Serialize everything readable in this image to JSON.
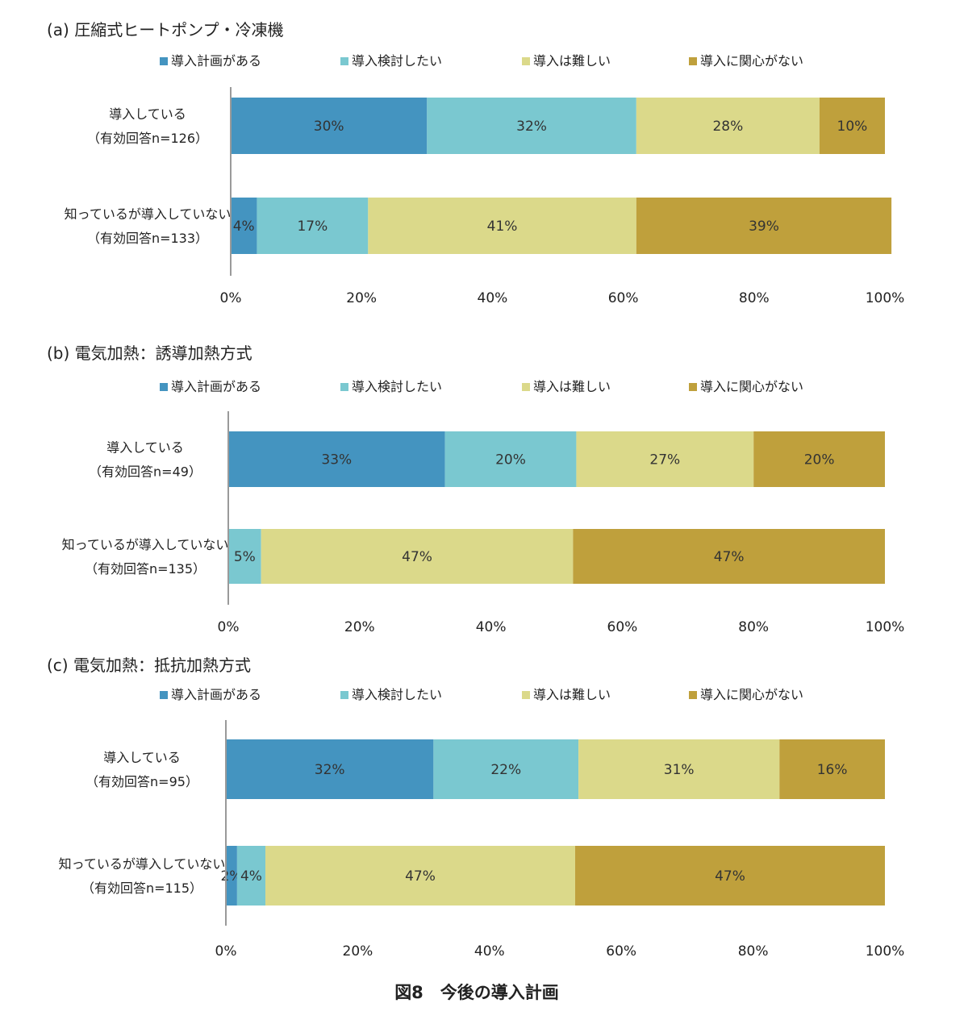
{
  "caption": "図8　今後の導入計画",
  "colors": {
    "導入計画がある": "#4494c0",
    "導入検討したい": "#7ac8d0",
    "導入は難しい": "#dbd98a",
    "導入に関心がない": "#bfa03c"
  },
  "chart_data": [
    {
      "type": "bar",
      "orientation": "horizontal",
      "stacked": true,
      "title": "(a) 圧縮式ヒートポンプ・冷凍機",
      "categories": [
        "導入している（有効回答n=126）",
        "知っているが導入していない（有効回答n=133）"
      ],
      "category_lines": [
        [
          "導入している",
          "（有効回答n=126）"
        ],
        [
          "知っているが導入していない",
          "（有効回答n=133）"
        ]
      ],
      "series": [
        {
          "name": "導入計画がある",
          "values": [
            30,
            4
          ],
          "labels": [
            "30%",
            "4%"
          ]
        },
        {
          "name": "導入検討したい",
          "values": [
            32,
            17
          ],
          "labels": [
            "32%",
            "17%"
          ]
        },
        {
          "name": "導入は難しい",
          "values": [
            28,
            41
          ],
          "labels": [
            "28%",
            "41%"
          ]
        },
        {
          "name": "導入に関心がない",
          "values": [
            10,
            39
          ],
          "labels": [
            "10%",
            "39%"
          ]
        }
      ],
      "xlim": [
        0,
        100
      ],
      "x_ticks": [
        "0%",
        "20%",
        "40%",
        "60%",
        "80%",
        "100%"
      ],
      "legend_position": "top"
    },
    {
      "type": "bar",
      "orientation": "horizontal",
      "stacked": true,
      "title": "(b) 電気加熱：誘導加熱方式",
      "categories": [
        "導入している（有効回答n=49）",
        "知っているが導入していない（有効回答n=135）"
      ],
      "category_lines": [
        [
          "導入している",
          "（有効回答n=49）"
        ],
        [
          "知っているが導入していない",
          "（有効回答n=135）"
        ]
      ],
      "series": [
        {
          "name": "導入計画がある",
          "values": [
            33,
            0
          ],
          "labels": [
            "33%",
            ""
          ]
        },
        {
          "name": "導入検討したい",
          "values": [
            20,
            5
          ],
          "labels": [
            "20%",
            "5%"
          ]
        },
        {
          "name": "導入は難しい",
          "values": [
            27,
            47.5
          ],
          "labels": [
            "27%",
            "47%"
          ]
        },
        {
          "name": "導入に関心がない",
          "values": [
            20,
            47.5
          ],
          "labels": [
            "20%",
            "47%"
          ]
        }
      ],
      "xlim": [
        0,
        100
      ],
      "x_ticks": [
        "0%",
        "20%",
        "40%",
        "60%",
        "80%",
        "100%"
      ],
      "legend_position": "top"
    },
    {
      "type": "bar",
      "orientation": "horizontal",
      "stacked": true,
      "title": "(c) 電気加熱：抵抗加熱方式",
      "categories": [
        "導入している（有効回答n=95）",
        "知っているが導入していない（有効回答n=115）"
      ],
      "category_lines": [
        [
          "導入している",
          "（有効回答n=95）"
        ],
        [
          "知っているが導入していない",
          "（有効回答n=115）"
        ]
      ],
      "series": [
        {
          "name": "導入計画がある",
          "values": [
            31.5,
            1.7
          ],
          "labels": [
            "32%",
            "2%"
          ]
        },
        {
          "name": "導入検討したい",
          "values": [
            22,
            4.3
          ],
          "labels": [
            "22%",
            "4%"
          ]
        },
        {
          "name": "導入は難しい",
          "values": [
            30.5,
            47
          ],
          "labels": [
            "31%",
            "47%"
          ]
        },
        {
          "name": "導入に関心がない",
          "values": [
            16,
            47
          ],
          "labels": [
            "16%",
            "47%"
          ]
        }
      ],
      "xlim": [
        0,
        100
      ],
      "x_ticks": [
        "0%",
        "20%",
        "40%",
        "60%",
        "80%",
        "100%"
      ],
      "legend_position": "top"
    }
  ]
}
